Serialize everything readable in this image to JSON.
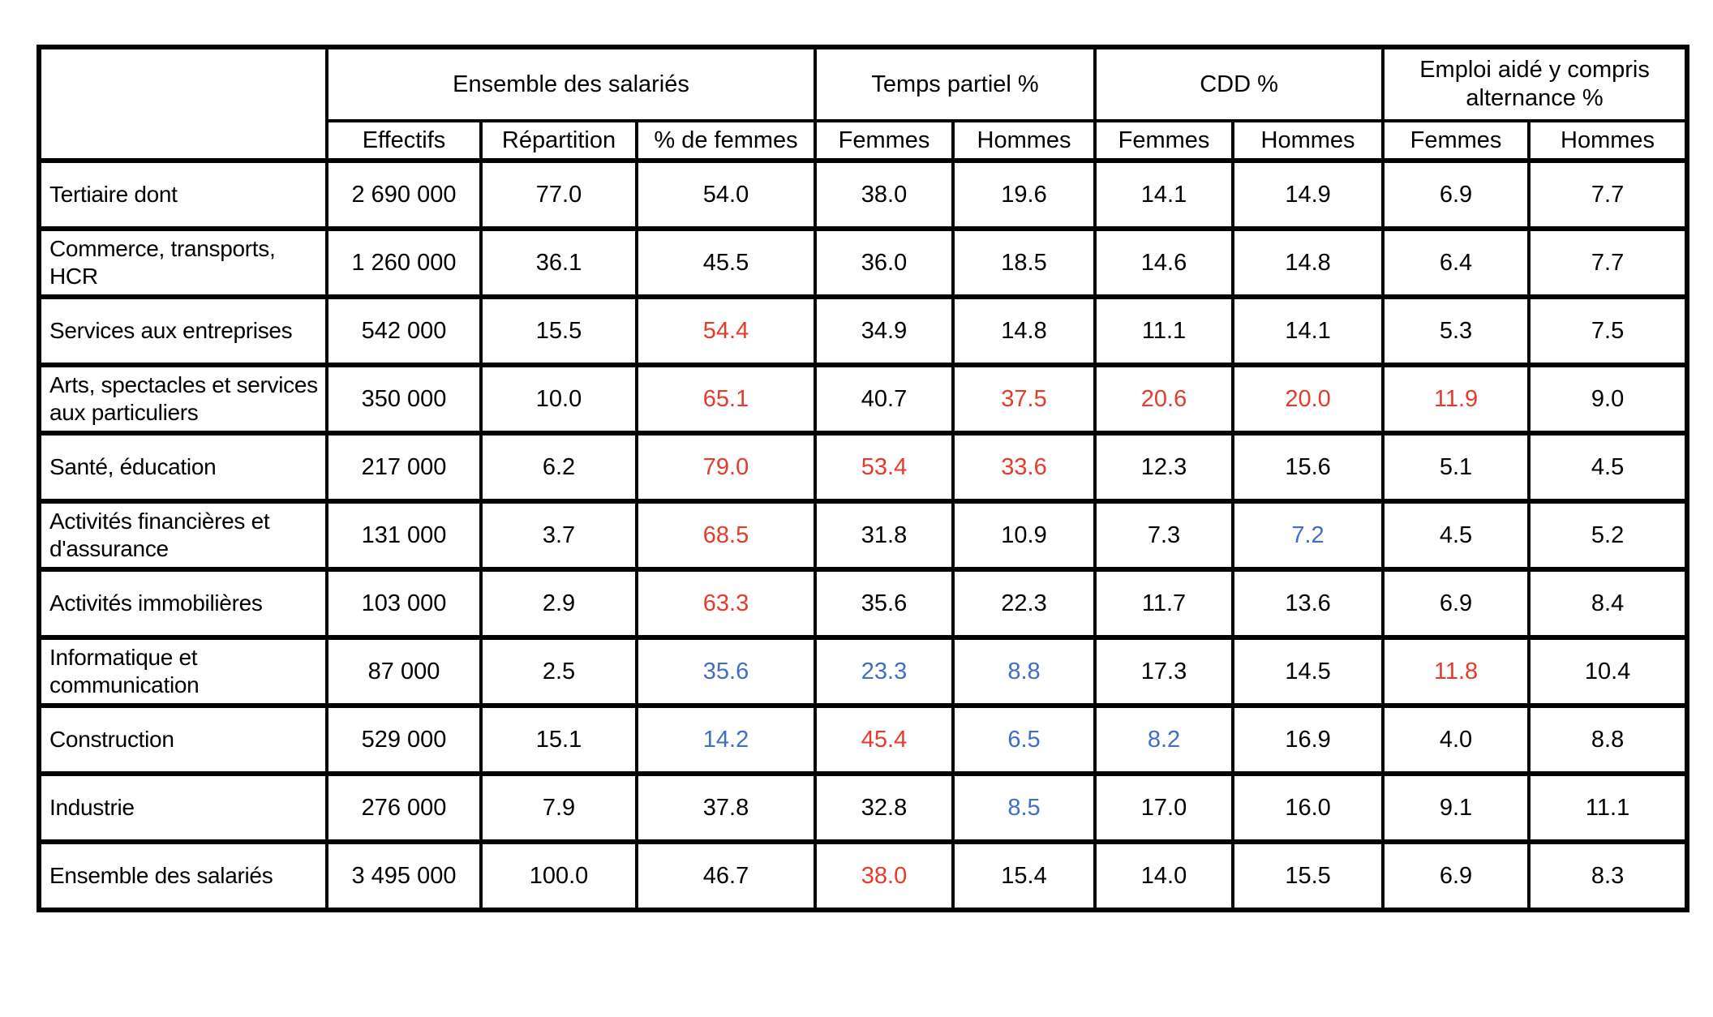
{
  "table": {
    "groups": [
      {
        "label": "Ensemble des salariés",
        "span": 3
      },
      {
        "label": "Temps partiel %",
        "span": 2
      },
      {
        "label": "CDD %",
        "span": 2
      },
      {
        "label": "Emploi aidé y compris alternance %",
        "span": 2
      }
    ],
    "subheaders": [
      "Effectifs",
      "Répartition",
      "% de femmes",
      "Femmes",
      "Hommes",
      "Femmes",
      "Hommes",
      "Femmes",
      "Hommes"
    ],
    "rows": [
      {
        "label": "Tertiaire dont",
        "values": [
          "2 690 000",
          "77.0",
          "54.0",
          "38.0",
          "19.6",
          "14.1",
          "14.9",
          "6.9",
          "7.7"
        ],
        "colors": [
          "black",
          "black",
          "black",
          "black",
          "black",
          "black",
          "black",
          "black",
          "black"
        ]
      },
      {
        "label": "Commerce, transports, HCR",
        "values": [
          "1 260 000",
          "36.1",
          "45.5",
          "36.0",
          "18.5",
          "14.6",
          "14.8",
          "6.4",
          "7.7"
        ],
        "colors": [
          "black",
          "black",
          "black",
          "black",
          "black",
          "black",
          "black",
          "black",
          "black"
        ]
      },
      {
        "label": "Services aux entreprises",
        "values": [
          "542 000",
          "15.5",
          "54.4",
          "34.9",
          "14.8",
          "11.1",
          "14.1",
          "5.3",
          "7.5"
        ],
        "colors": [
          "black",
          "black",
          "red",
          "black",
          "black",
          "black",
          "black",
          "black",
          "black"
        ]
      },
      {
        "label": "Arts, spectacles et services aux particuliers",
        "values": [
          "350 000",
          "10.0",
          "65.1",
          "40.7",
          "37.5",
          "20.6",
          "20.0",
          "11.9",
          "9.0"
        ],
        "colors": [
          "black",
          "black",
          "red",
          "black",
          "red",
          "red",
          "red",
          "red",
          "black"
        ]
      },
      {
        "label": "Santé, éducation",
        "values": [
          "217 000",
          "6.2",
          "79.0",
          "53.4",
          "33.6",
          "12.3",
          "15.6",
          "5.1",
          "4.5"
        ],
        "colors": [
          "black",
          "black",
          "red",
          "red",
          "red",
          "black",
          "black",
          "black",
          "black"
        ]
      },
      {
        "label": "Activités financières et d'assurance",
        "values": [
          "131 000",
          "3.7",
          "68.5",
          "31.8",
          "10.9",
          "7.3",
          "7.2",
          "4.5",
          "5.2"
        ],
        "colors": [
          "black",
          "black",
          "red",
          "black",
          "black",
          "black",
          "blue",
          "black",
          "black"
        ]
      },
      {
        "label": "Activités immobilières",
        "values": [
          "103 000",
          "2.9",
          "63.3",
          "35.6",
          "22.3",
          "11.7",
          "13.6",
          "6.9",
          "8.4"
        ],
        "colors": [
          "black",
          "black",
          "red",
          "black",
          "black",
          "black",
          "black",
          "black",
          "black"
        ]
      },
      {
        "label": "Informatique et communication",
        "values": [
          "87 000",
          "2.5",
          "35.6",
          "23.3",
          "8.8",
          "17.3",
          "14.5",
          "11.8",
          "10.4"
        ],
        "colors": [
          "black",
          "black",
          "blue",
          "blue",
          "blue",
          "black",
          "black",
          "red",
          "black"
        ]
      },
      {
        "label": "Construction",
        "values": [
          "529 000",
          "15.1",
          "14.2",
          "45.4",
          "6.5",
          "8.2",
          "16.9",
          "4.0",
          "8.8"
        ],
        "colors": [
          "black",
          "black",
          "blue",
          "red",
          "blue",
          "blue",
          "black",
          "black",
          "black"
        ]
      },
      {
        "label": "Industrie",
        "values": [
          "276 000",
          "7.9",
          "37.8",
          "32.8",
          "8.5",
          "17.0",
          "16.0",
          "9.1",
          "11.1"
        ],
        "colors": [
          "black",
          "black",
          "black",
          "black",
          "blue",
          "black",
          "black",
          "black",
          "black"
        ]
      },
      {
        "label": "Ensemble des salariés",
        "values": [
          "3 495 000",
          "100.0",
          "46.7",
          "38.0",
          "15.4",
          "14.0",
          "15.5",
          "6.9",
          "8.3"
        ],
        "colors": [
          "black",
          "black",
          "black",
          "red",
          "black",
          "black",
          "black",
          "black",
          "black"
        ]
      }
    ],
    "colors": {
      "red": "#e63b2c",
      "blue": "#3e6ec8",
      "shade": "#bfbfbf",
      "border": "#000000",
      "text": "#000000"
    }
  }
}
